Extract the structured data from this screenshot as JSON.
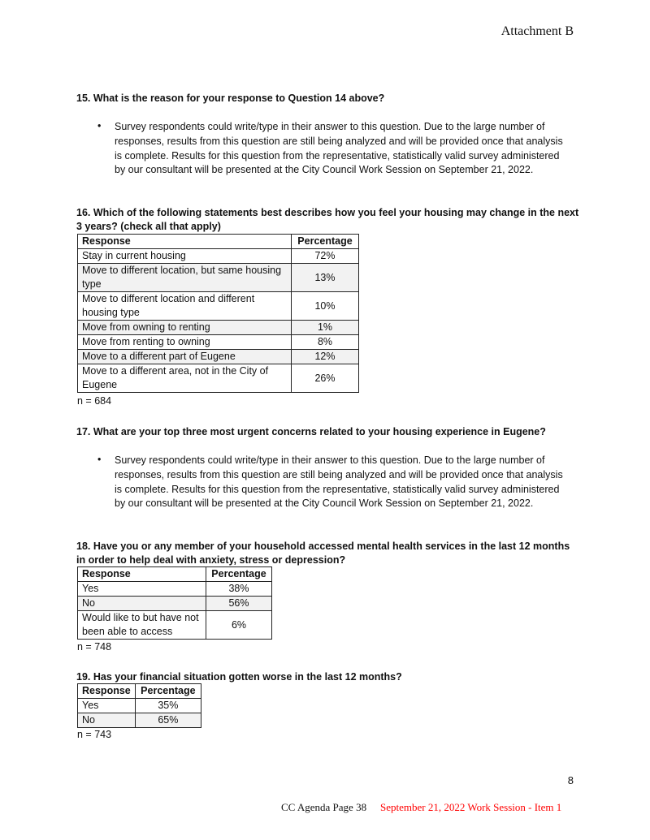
{
  "header": {
    "attachment": "Attachment B"
  },
  "q15": {
    "title": "15. What is the reason for your response to Question 14 above?",
    "bullet": "Survey respondents could write/type in their answer to this question. Due to the large number of responses, results from this question are still being analyzed and will be provided once that analysis is complete. Results for this question from the representative, statistically valid survey administered by our consultant will be presented at the City Council Work Session on September 21, 2022."
  },
  "q16": {
    "title": "16. Which of the following statements best describes how you feel your housing may change in the next 3 years? (check all that apply)",
    "headers": [
      "Response",
      "Percentage"
    ],
    "rows": [
      [
        "Stay in current housing",
        "72%"
      ],
      [
        "Move to different location, but same housing type",
        "13%"
      ],
      [
        "Move to different location and different housing type",
        "10%"
      ],
      [
        "Move from owning to renting",
        "1%"
      ],
      [
        "Move from renting to owning",
        "8%"
      ],
      [
        "Move to a different part of Eugene",
        "12%"
      ],
      [
        "Move to a different area, not in the City of Eugene",
        "26%"
      ]
    ],
    "n": "n = 684"
  },
  "q17": {
    "title": "17. What are your top three most urgent concerns related to your housing experience in Eugene?",
    "bullet": "Survey respondents could write/type in their answer to this question. Due to the large number of responses, results from this question are still being analyzed and will be provided once that analysis is complete. Results for this question from the representative, statistically valid survey administered by our consultant will be presented at the City Council Work Session on September 21, 2022."
  },
  "q18": {
    "title": "18. Have you or any member of your household accessed mental health services in the last 12 months in order to help deal with anxiety, stress or depression?",
    "headers": [
      "Response",
      "Percentage"
    ],
    "rows": [
      [
        "Yes",
        "38%"
      ],
      [
        "No",
        "56%"
      ],
      [
        "Would like to but have not been able to access",
        "6%"
      ]
    ],
    "n": "n = 748"
  },
  "q19": {
    "title": "19. Has your financial situation gotten worse in the last 12 months?",
    "headers": [
      "Response",
      "Percentage"
    ],
    "rows": [
      [
        "Yes",
        "35%"
      ],
      [
        "No",
        "65%"
      ]
    ],
    "n": "n = 743"
  },
  "footer": {
    "page_number": "8",
    "agenda": "CC Agenda Page 38",
    "session": "September 21, 2022 Work Session - Item 1",
    "session_color": "#ff0000"
  }
}
